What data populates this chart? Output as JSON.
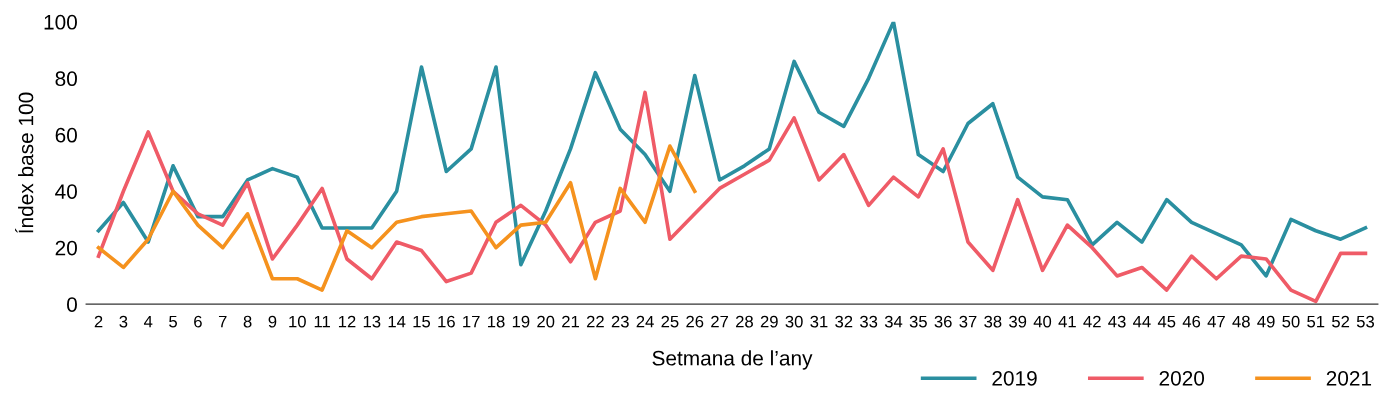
{
  "chart_data": {
    "type": "line",
    "xlabel": "Setmana de l’any",
    "ylabel": "Índex base 100",
    "categories": [
      "2",
      "3",
      "4",
      "5",
      "6",
      "7",
      "8",
      "9",
      "10",
      "11",
      "12",
      "13",
      "14",
      "15",
      "16",
      "17",
      "18",
      "19",
      "20",
      "21",
      "22",
      "23",
      "24",
      "25",
      "26",
      "27",
      "28",
      "29",
      "30",
      "31",
      "32",
      "33",
      "34",
      "35",
      "36",
      "37",
      "38",
      "39",
      "40",
      "41",
      "42",
      "43",
      "44",
      "45",
      "46",
      "47",
      "48",
      "49",
      "50",
      "51",
      "52",
      "53"
    ],
    "series": [
      {
        "name": "2019",
        "color": "#2a8fa0",
        "values": [
          26,
          36,
          22,
          49,
          31,
          31,
          44,
          48,
          45,
          27,
          27,
          27,
          40,
          84,
          47,
          55,
          84,
          14,
          33,
          55,
          82,
          62,
          53,
          40,
          81,
          44,
          49,
          55,
          86,
          68,
          63,
          80,
          100,
          53,
          47,
          64,
          71,
          45,
          38,
          37,
          21,
          29,
          22,
          37,
          29,
          25,
          21,
          10,
          30,
          26,
          23,
          27
        ]
      },
      {
        "name": "2020",
        "color": "#ef5b67",
        "values": [
          17,
          40,
          61,
          40,
          32,
          28,
          43,
          16,
          28,
          41,
          16,
          9,
          22,
          19,
          8,
          11,
          29,
          35,
          28,
          15,
          29,
          33,
          75,
          23,
          32,
          41,
          46,
          51,
          66,
          44,
          53,
          35,
          45,
          38,
          55,
          22,
          12,
          37,
          12,
          28,
          20,
          10,
          13,
          5,
          17,
          9,
          17,
          16,
          5,
          1,
          18,
          18
        ]
      },
      {
        "name": "2021",
        "color": "#f5921e",
        "values": [
          20,
          13,
          23,
          40,
          28,
          20,
          32,
          9,
          9,
          5,
          26,
          20,
          29,
          31,
          32,
          33,
          20,
          28,
          29,
          43,
          9,
          41,
          29,
          56,
          40,
          null,
          null,
          null,
          null,
          null,
          null,
          null,
          null,
          null,
          null,
          null,
          null,
          null,
          null,
          null,
          null,
          null,
          null,
          null,
          null,
          null,
          null,
          null,
          null,
          null,
          null,
          null
        ]
      }
    ],
    "ylim": [
      0,
      100
    ],
    "yticks": [
      0,
      20,
      40,
      60,
      80,
      100
    ],
    "grid": false,
    "legend": "bottom right",
    "marker": "none",
    "line_style": "solid"
  }
}
